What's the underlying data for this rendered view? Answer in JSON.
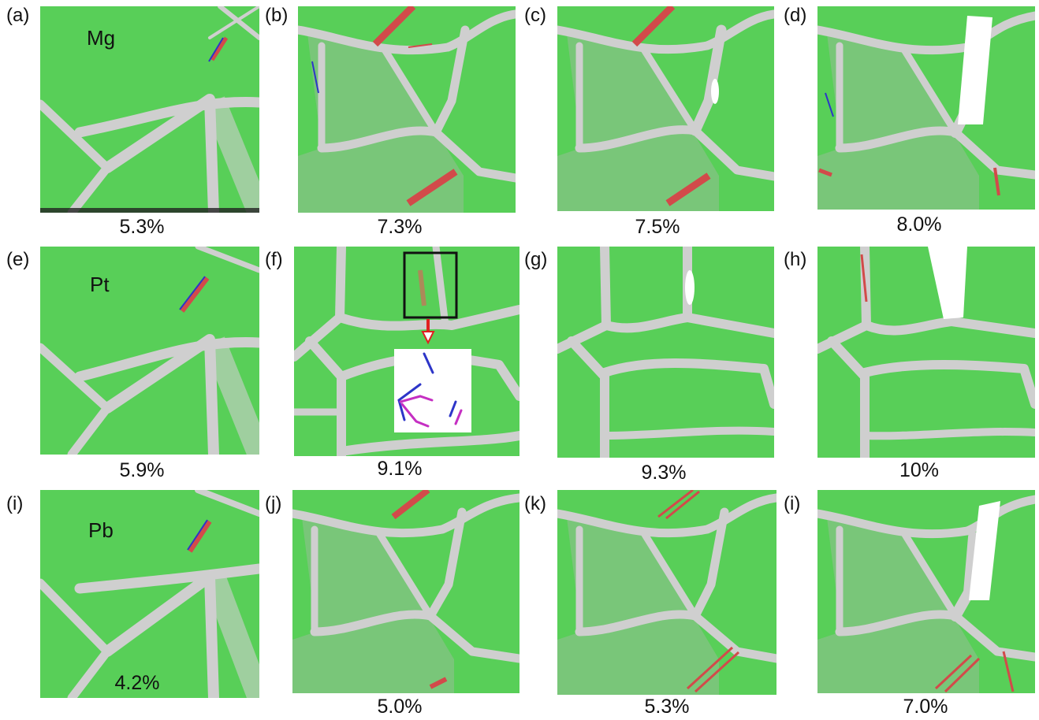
{
  "colors": {
    "grain": "#58cf58",
    "boundary": "#cfcfcf",
    "hcp": "#d24a4a",
    "dislocation_blue": "#2d35c8",
    "dislocation_magenta": "#c52fc2",
    "void": "#ffffff",
    "arrow": "#e02020"
  },
  "panels": [
    {
      "letter": "(a)",
      "strain": "5.3%",
      "element": "Mg"
    },
    {
      "letter": "(b)",
      "strain": "7.3%"
    },
    {
      "letter": "(c)",
      "strain": "7.5%"
    },
    {
      "letter": "(d)",
      "strain": "8.0%"
    },
    {
      "letter": "(e)",
      "strain": "5.9%",
      "element": "Pt"
    },
    {
      "letter": "(f)",
      "strain": "9.1%"
    },
    {
      "letter": "(g)",
      "strain": "9.3%"
    },
    {
      "letter": "(h)",
      "strain": "10%"
    },
    {
      "letter": "(i)",
      "strain": "4.2%",
      "element": "Pb"
    },
    {
      "letter": "(j)",
      "strain": "5.0%"
    },
    {
      "letter": "(k)",
      "strain": "5.3%"
    },
    {
      "letter": "(i)",
      "strain": "7.0%"
    }
  ]
}
